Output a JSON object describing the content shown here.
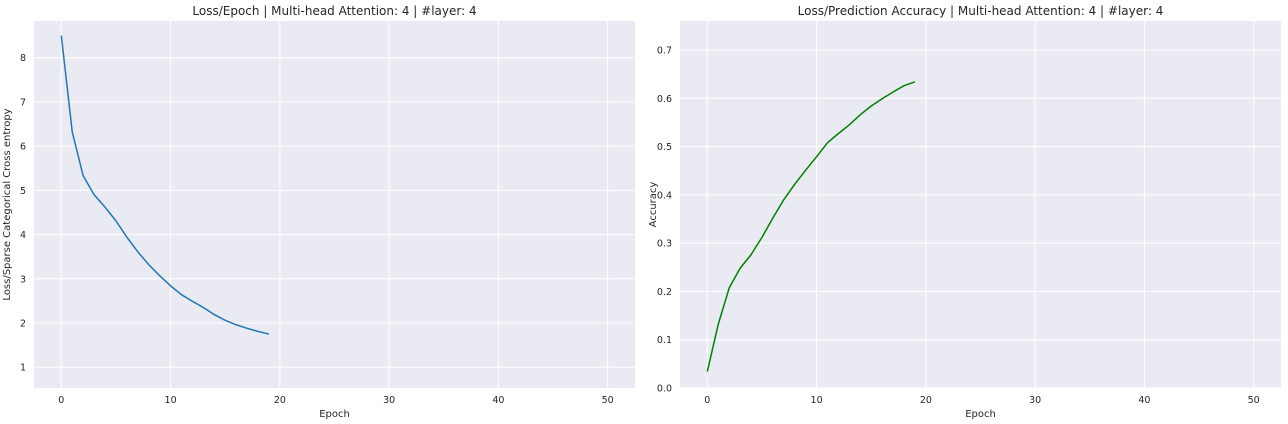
{
  "chart_data": [
    {
      "type": "line",
      "title": "Loss/Epoch | Multi-head Attention: 4 | #layer: 4",
      "xlabel": "Epoch",
      "ylabel": "Loss/Sparse Categorical Cross entropy",
      "xlim": [
        -2.5,
        52.5
      ],
      "ylim": [
        0.53,
        8.83
      ],
      "xticks": [
        0,
        10,
        20,
        30,
        40,
        50
      ],
      "yticks": [
        1,
        2,
        3,
        4,
        5,
        6,
        7,
        8
      ],
      "grid": true,
      "series": [
        {
          "color": "#1f77b4",
          "x": [
            0,
            1,
            2,
            3,
            4,
            5,
            6,
            7,
            8,
            9,
            10,
            11,
            12,
            13,
            14,
            15,
            16,
            17,
            18,
            19
          ],
          "y": [
            8.5,
            6.32,
            5.33,
            4.9,
            4.62,
            4.31,
            3.94,
            3.61,
            3.32,
            3.07,
            2.84,
            2.64,
            2.49,
            2.35,
            2.19,
            2.06,
            1.96,
            1.88,
            1.81,
            1.75
          ]
        }
      ]
    },
    {
      "type": "line",
      "title": "Loss/Prediction Accuracy | Multi-head Attention: 4 | #layer: 4",
      "xlabel": "Epoch",
      "ylabel": "Accuracy",
      "xlim": [
        -2.5,
        52.5
      ],
      "ylim": [
        0.0,
        0.76
      ],
      "xticks": [
        0,
        10,
        20,
        30,
        40,
        50
      ],
      "yticks": [
        0.0,
        0.1,
        0.2,
        0.3,
        0.4,
        0.5,
        0.6,
        0.7
      ],
      "grid": true,
      "series": [
        {
          "color": "#008000",
          "x": [
            0,
            1,
            2,
            3,
            4,
            5,
            6,
            7,
            8,
            9,
            10,
            11,
            12,
            13,
            14,
            15,
            16,
            17,
            18,
            19
          ],
          "y": [
            0.034,
            0.132,
            0.207,
            0.248,
            0.276,
            0.312,
            0.352,
            0.39,
            0.422,
            0.451,
            0.479,
            0.508,
            0.527,
            0.545,
            0.566,
            0.584,
            0.599,
            0.613,
            0.626,
            0.634
          ]
        }
      ]
    }
  ]
}
